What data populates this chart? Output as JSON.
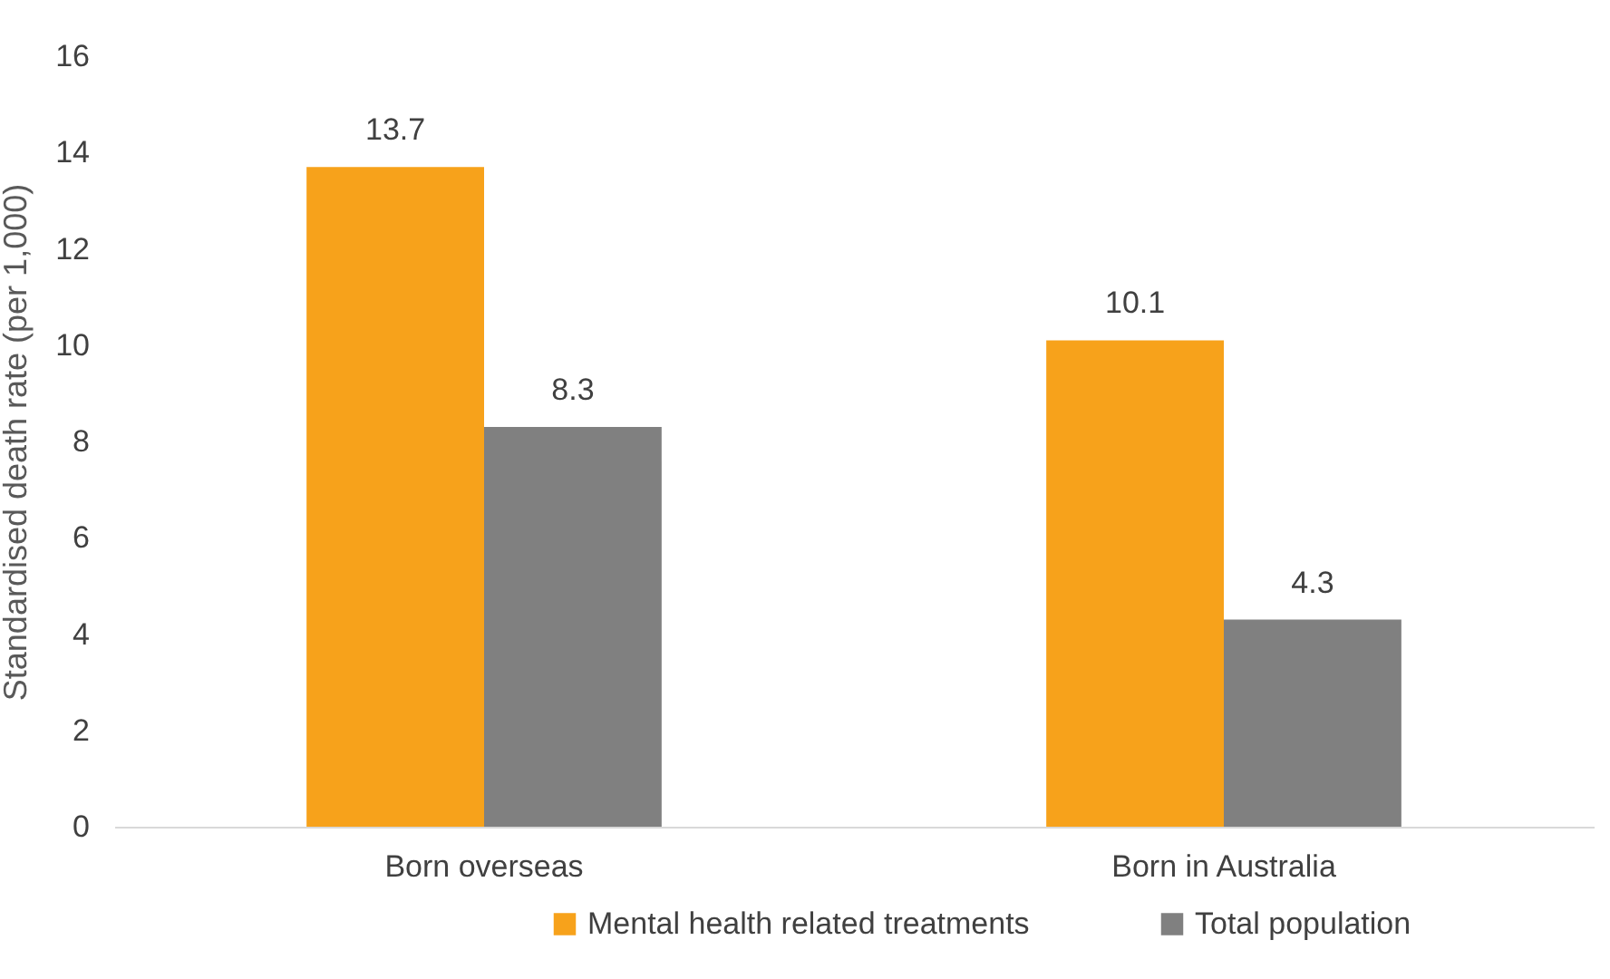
{
  "chart_data": {
    "type": "bar",
    "ylabel": "Standardised death rate (per 1,000)",
    "categories": [
      "Born overseas",
      "Born in Australia"
    ],
    "series": [
      {
        "name": "Mental health related treatments",
        "color": "#f7a21b",
        "values": [
          13.7,
          10.1
        ]
      },
      {
        "name": "Total population",
        "color": "#808080",
        "values": [
          8.3,
          4.3
        ]
      }
    ],
    "ylim": [
      0,
      16
    ],
    "yticks": [
      0,
      2,
      4,
      6,
      8,
      10,
      12,
      14,
      16
    ],
    "data_labels": true,
    "grid": false,
    "legend": "bottom"
  }
}
